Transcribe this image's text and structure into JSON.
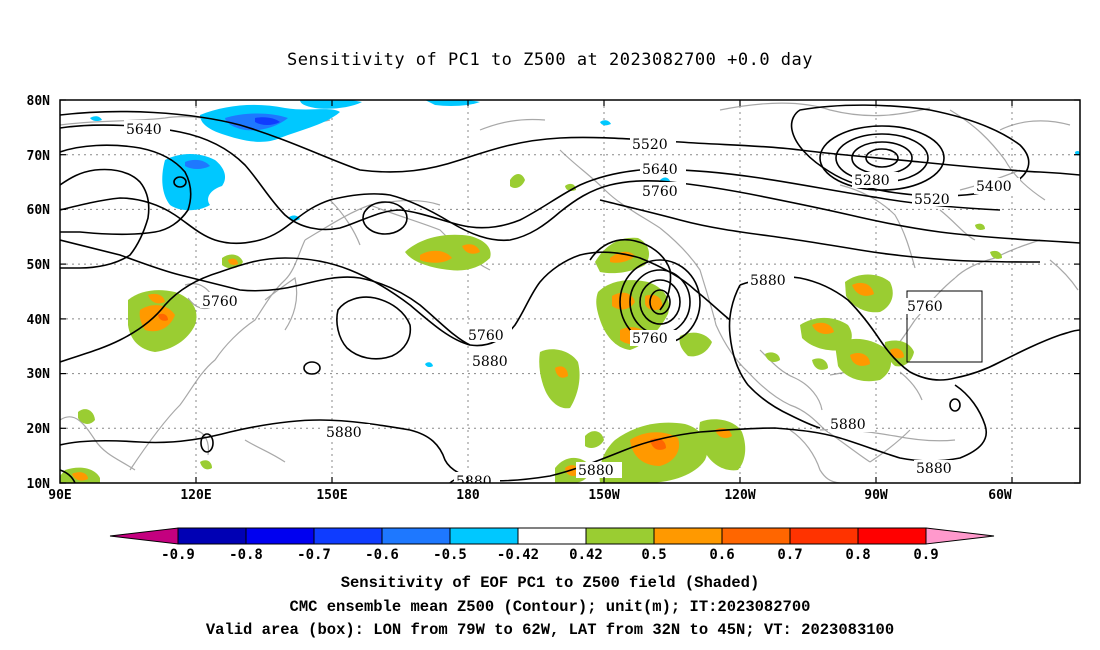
{
  "title": "Sensitivity of PC1 to Z500 at 2023082700 +0.0 day",
  "map": {
    "lat_labels": [
      "80N",
      "70N",
      "60N",
      "50N",
      "40N",
      "30N",
      "20N",
      "10N"
    ],
    "lon_labels": [
      "90E",
      "120E",
      "150E",
      "180",
      "150W",
      "120W",
      "90W",
      "60W"
    ],
    "contour_labels": [
      {
        "text": "5640"
      },
      {
        "text": "5520"
      },
      {
        "text": "5640"
      },
      {
        "text": "5760"
      },
      {
        "text": "5280"
      },
      {
        "text": "5400"
      },
      {
        "text": "5520"
      },
      {
        "text": "5760"
      },
      {
        "text": "5880"
      },
      {
        "text": "5760"
      },
      {
        "text": "5760"
      },
      {
        "text": "5880"
      },
      {
        "text": "5760"
      },
      {
        "text": "5880"
      },
      {
        "text": "5880"
      },
      {
        "text": "5880"
      },
      {
        "text": "5880"
      },
      {
        "text": "5880"
      }
    ],
    "box_label": "Valid area box"
  },
  "colorbar": {
    "labels": [
      "-0.9",
      "-0.8",
      "-0.7",
      "-0.6",
      "-0.5",
      "-0.42",
      "0.42",
      "0.5",
      "0.6",
      "0.7",
      "0.8",
      "0.9"
    ],
    "colors": [
      "#c4007f",
      "#0000b4",
      "#0000f0",
      "#0f3cff",
      "#1e78ff",
      "#00c8ff",
      "#ffffff",
      "#9acd32",
      "#ff9900",
      "#ff6600",
      "#ff3300",
      "#ff0000",
      "#ff99cc"
    ]
  },
  "captions": {
    "line1": "Sensitivity of EOF PC1 to Z500 field (Shaded)",
    "line2": "CMC ensemble mean Z500 (Contour); unit(m); IT:2023082700",
    "line3": "Valid area (box): LON from 79W to 62W, LAT from 32N to 45N; VT: 2023083100"
  }
}
